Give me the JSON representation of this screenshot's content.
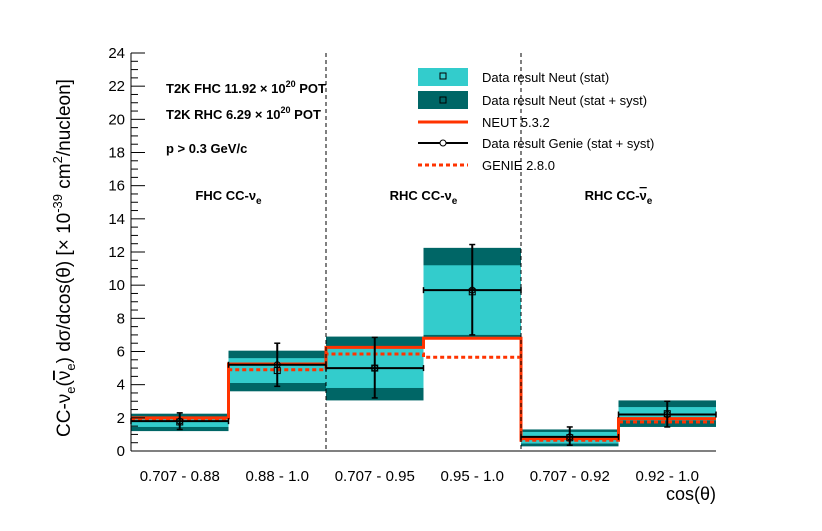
{
  "chart_data": {
    "type": "step-histogram",
    "xlabel": "cos(θ)",
    "ylabel_parts": {
      "prefix": "CC-ν",
      "sub1": "e",
      "mid": "(",
      "nubar": "ν",
      "sub2": "e",
      "after": ") dσ/dcos(θ) [× 10",
      "exp": "-39",
      "unit": " cm",
      "unit_exp": "2",
      "tail": "/nucleon]"
    },
    "ylim": [
      0,
      24
    ],
    "yticks": [
      0,
      2,
      4,
      6,
      8,
      10,
      12,
      14,
      16,
      18,
      20,
      22,
      24
    ],
    "bin_labels": [
      "0.707 - 0.88",
      "0.88  - 1.0",
      "0.707 - 0.95",
      "0.95  - 1.0",
      "0.707 - 0.92",
      "0.92  - 1.0"
    ],
    "regions": [
      {
        "name": "FHC CC-ν",
        "sub": "e",
        "bar": false
      },
      {
        "name": "RHC CC-ν",
        "sub": "e",
        "bar": false
      },
      {
        "name": "RHC CC-ν",
        "sub": "e",
        "bar": true
      }
    ],
    "annotations": {
      "fhc": {
        "pre": "T2K FHC 11.92 × 10",
        "exp": "20",
        "post": " POT"
      },
      "rhc": {
        "pre": "T2K RHC  6.29 × 10",
        "exp": "20",
        "post": " POT"
      },
      "cut": "p > 0.3 GeV/c"
    },
    "legend": [
      {
        "label": "Data result Neut (stat)",
        "style": "stat-box"
      },
      {
        "label": "Data result Neut (stat + syst)",
        "style": "syst-box"
      },
      {
        "label": "NEUT 5.3.2",
        "style": "neut-line"
      },
      {
        "label": "Data result Genie (stat + syst)",
        "style": "genie-point"
      },
      {
        "label": "GENIE 2.8.0",
        "style": "genie-dashed"
      }
    ],
    "series": {
      "data_neut": {
        "values": [
          1.75,
          4.85,
          5.0,
          9.6,
          0.8,
          2.25
        ],
        "stat_low": [
          1.45,
          4.1,
          3.8,
          7.0,
          0.45,
          1.85
        ],
        "stat_high": [
          2.05,
          5.6,
          6.2,
          11.2,
          1.15,
          2.65
        ],
        "syst_low": [
          1.2,
          3.6,
          3.05,
          6.75,
          0.28,
          1.45
        ],
        "syst_high": [
          2.25,
          6.05,
          6.9,
          12.25,
          1.3,
          3.05
        ]
      },
      "data_genie": {
        "values": [
          1.8,
          5.2,
          5.0,
          9.7,
          0.85,
          2.2
        ],
        "err_low": [
          1.3,
          3.9,
          3.2,
          7.0,
          0.35,
          1.45
        ],
        "err_high": [
          2.3,
          6.5,
          6.85,
          12.45,
          1.45,
          3.0
        ]
      },
      "neut_5_3_2": {
        "values": [
          2.0,
          5.25,
          6.25,
          6.8,
          0.75,
          1.95
        ]
      },
      "genie_2_8_0": {
        "values": [
          1.9,
          4.9,
          5.85,
          5.65,
          0.65,
          1.75
        ]
      }
    },
    "colors": {
      "stat": "#33cccc",
      "syst": "#006666",
      "neut": "#ff3300",
      "genie": "#000000"
    }
  }
}
